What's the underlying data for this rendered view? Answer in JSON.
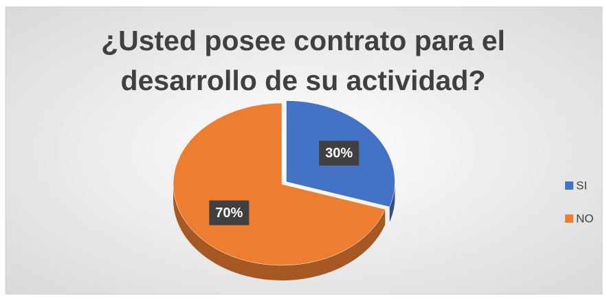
{
  "chart_data": {
    "type": "pie3d",
    "title": [
      "¿Usted  posee contrato para el",
      "desarrollo de su actividad?"
    ],
    "categories": [
      "SI",
      "NO"
    ],
    "values": [
      30,
      70
    ],
    "value_labels": [
      "30%",
      "70%"
    ],
    "colors": [
      "#4472c4",
      "#ed7d31"
    ],
    "legend": "right"
  }
}
